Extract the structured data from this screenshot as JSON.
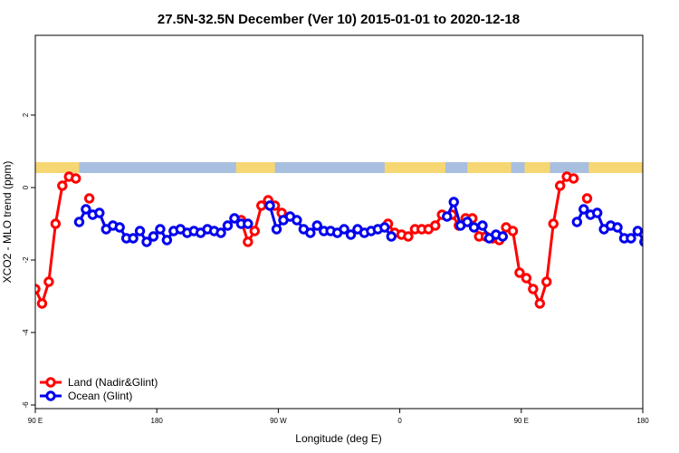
{
  "chart_data": {
    "type": "line",
    "title": "27.5N-32.5N December (Ver 10)   2015-01-01 to 2020-12-18",
    "xlabel": "Longitude (deg E)",
    "ylabel": "XCO2 - MLO trend (ppm)",
    "xlim": [
      90,
      450
    ],
    "ylim": [
      -6.1,
      4.2
    ],
    "x_ticks": [
      90,
      162,
      234,
      306,
      378,
      450
    ],
    "x_tick_labels": [
      "90 E",
      "180",
      "90 W",
      "0",
      "90 E",
      "180"
    ],
    "y_ticks": [
      -6,
      -4,
      -2,
      0,
      2
    ],
    "y_tick_labels": [
      "-6",
      "-4",
      "-2",
      "0",
      "2"
    ],
    "grid": false,
    "legend_position": "bottom-left",
    "land_ocean_band": {
      "y_range": [
        0.4,
        0.7
      ],
      "land_color": "#F7D774",
      "ocean_color": "#A8BFDF",
      "land_segments": [
        [
          90,
          116
        ],
        [
          209,
          232
        ],
        [
          297,
          333
        ],
        [
          346,
          372
        ],
        [
          380,
          395
        ],
        [
          418,
          453
        ]
      ]
    },
    "series": [
      {
        "name": "Land (Nadir&Glint)",
        "color": "#FF0000",
        "segments": [
          [
            [
              90,
              -2.8
            ],
            [
              94,
              -3.2
            ],
            [
              98,
              -2.6
            ],
            [
              102,
              -1.0
            ],
            [
              106,
              0.05
            ],
            [
              110,
              0.3
            ],
            [
              114,
              0.25
            ]
          ],
          [
            [
              122,
              -0.3
            ]
          ],
          [
            [
              212,
              -0.9
            ],
            [
              216,
              -1.5
            ],
            [
              220,
              -1.2
            ],
            [
              224,
              -0.5
            ],
            [
              228,
              -0.35
            ],
            [
              232,
              -0.5
            ],
            [
              236,
              -0.7
            ]
          ],
          [
            [
              299,
              -1.0
            ],
            [
              303,
              -1.25
            ],
            [
              307,
              -1.3
            ],
            [
              311,
              -1.35
            ],
            [
              315,
              -1.15
            ],
            [
              319,
              -1.15
            ],
            [
              323,
              -1.15
            ],
            [
              327,
              -1.05
            ],
            [
              331,
              -0.75
            ]
          ],
          [
            [
              337,
              -0.75
            ],
            [
              341,
              -1.05
            ],
            [
              345,
              -0.85
            ],
            [
              349,
              -0.85
            ],
            [
              353,
              -1.35
            ],
            [
              357,
              -1.35
            ],
            [
              361,
              -1.4
            ],
            [
              365,
              -1.45
            ],
            [
              369,
              -1.1
            ],
            [
              373,
              -1.2
            ],
            [
              377,
              -2.35
            ],
            [
              381,
              -2.5
            ],
            [
              385,
              -2.8
            ],
            [
              389,
              -3.2
            ],
            [
              393,
              -2.6
            ],
            [
              397,
              -1.0
            ],
            [
              401,
              0.05
            ],
            [
              405,
              0.3
            ],
            [
              409,
              0.25
            ]
          ],
          [
            [
              417,
              -0.3
            ]
          ]
        ]
      },
      {
        "name": "Ocean (Glint)",
        "color": "#0000EE",
        "segments": [
          [
            [
              116,
              -0.95
            ],
            [
              120,
              -0.6
            ],
            [
              124,
              -0.75
            ],
            [
              128,
              -0.7
            ],
            [
              132,
              -1.15
            ],
            [
              136,
              -1.05
            ],
            [
              140,
              -1.1
            ],
            [
              144,
              -1.4
            ],
            [
              148,
              -1.4
            ],
            [
              152,
              -1.2
            ],
            [
              156,
              -1.5
            ],
            [
              160,
              -1.35
            ],
            [
              164,
              -1.15
            ],
            [
              168,
              -1.45
            ],
            [
              172,
              -1.2
            ],
            [
              176,
              -1.15
            ],
            [
              180,
              -1.25
            ],
            [
              184,
              -1.2
            ],
            [
              188,
              -1.25
            ],
            [
              192,
              -1.15
            ],
            [
              196,
              -1.2
            ],
            [
              200,
              -1.25
            ],
            [
              204,
              -1.05
            ],
            [
              208,
              -0.85
            ],
            [
              212,
              -1.0
            ],
            [
              216,
              -1.0
            ]
          ],
          [
            [
              229,
              -0.5
            ],
            [
              233,
              -1.15
            ],
            [
              237,
              -0.9
            ],
            [
              241,
              -0.8
            ],
            [
              245,
              -0.9
            ],
            [
              249,
              -1.15
            ],
            [
              253,
              -1.25
            ],
            [
              257,
              -1.05
            ],
            [
              261,
              -1.2
            ],
            [
              265,
              -1.2
            ],
            [
              269,
              -1.25
            ],
            [
              273,
              -1.15
            ],
            [
              277,
              -1.3
            ],
            [
              281,
              -1.15
            ],
            [
              285,
              -1.25
            ],
            [
              289,
              -1.2
            ],
            [
              293,
              -1.15
            ],
            [
              297,
              -1.1
            ],
            [
              301,
              -1.35
            ]
          ],
          [
            [
              334,
              -0.8
            ],
            [
              338,
              -0.4
            ],
            [
              342,
              -1.05
            ],
            [
              346,
              -0.95
            ],
            [
              350,
              -1.1
            ]
          ],
          [
            [
              355,
              -1.05
            ],
            [
              359,
              -1.4
            ],
            [
              363,
              -1.3
            ],
            [
              367,
              -1.35
            ]
          ],
          [
            [
              411,
              -0.95
            ],
            [
              415,
              -0.6
            ],
            [
              419,
              -0.75
            ],
            [
              423,
              -0.7
            ],
            [
              427,
              -1.15
            ],
            [
              431,
              -1.05
            ],
            [
              435,
              -1.1
            ],
            [
              439,
              -1.4
            ],
            [
              443,
              -1.4
            ],
            [
              447,
              -1.2
            ],
            [
              451,
              -1.5
            ],
            [
              455,
              -1.35
            ]
          ]
        ]
      }
    ]
  }
}
